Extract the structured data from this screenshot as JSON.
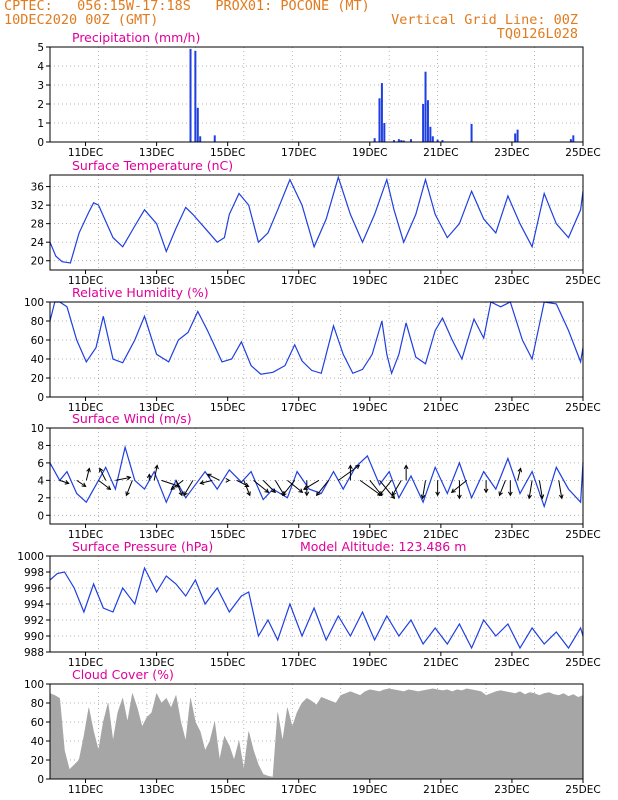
{
  "header": {
    "line1": "CPTEC:   056:15W-17:18S   PROX01: POCONE (MT)",
    "line2": "10DEC2020 00Z (GMT)",
    "grid_note": "Vertical Grid Line: 00Z",
    "code": "TQ0126L028"
  },
  "colors": {
    "header": "#e07b1f",
    "title": "#e0009a",
    "series": "#1f3fe0",
    "cloud": "#a6a6a6",
    "frame": "#000000",
    "grid": "#9a9a9a",
    "arrow": "#000000"
  },
  "x_ticks": [
    "11DEC",
    "13DEC",
    "15DEC",
    "17DEC",
    "19DEC",
    "21DEC",
    "23DEC",
    "25DEC"
  ],
  "chart_data": [
    {
      "id": "precip",
      "type": "bar",
      "title": "Precipitation  (mm/h)",
      "ylim": [
        0,
        5
      ],
      "yticks": [
        0,
        1,
        2,
        3,
        4,
        5
      ],
      "x_days": [
        2.9,
        3.0,
        3.05,
        3.1,
        3.4,
        6.7,
        6.8,
        6.85,
        6.9,
        7.1,
        7.2,
        7.25,
        7.3,
        7.45,
        7.7,
        7.75,
        7.8,
        7.85,
        7.9,
        8.0,
        8.1,
        8.7,
        9.6,
        9.65,
        10.75,
        10.8
      ],
      "values": [
        4.9,
        4.8,
        1.8,
        0.3,
        0.35,
        0.2,
        2.3,
        3.1,
        1.0,
        0.1,
        0.15,
        0.1,
        0.08,
        0.15,
        2.0,
        3.7,
        2.2,
        0.8,
        0.3,
        0.12,
        0.1,
        0.95,
        0.45,
        0.65,
        0.15,
        0.35
      ]
    },
    {
      "id": "temp",
      "type": "line",
      "title": "Surface Temperature  (nC)",
      "ylim": [
        18,
        38.5
      ],
      "yticks": [
        20,
        24,
        28,
        32,
        36
      ],
      "x_days": [
        0,
        0.12,
        0.25,
        0.42,
        0.6,
        0.8,
        0.9,
        1.0,
        1.3,
        1.5,
        1.75,
        1.95,
        2.2,
        2.4,
        2.6,
        2.8,
        2.95,
        3.2,
        3.45,
        3.6,
        3.7,
        3.9,
        4.1,
        4.3,
        4.5,
        4.7,
        4.95,
        5.2,
        5.45,
        5.7,
        5.95,
        6.2,
        6.45,
        6.7,
        6.95,
        7.1,
        7.3,
        7.55,
        7.75,
        7.95,
        8.2,
        8.45,
        8.7,
        8.95,
        9.2,
        9.45,
        9.7,
        9.95,
        10.2,
        10.45,
        10.7,
        10.95,
        11.0
      ],
      "values": [
        24,
        21,
        19.8,
        19.5,
        26,
        30.5,
        32.5,
        32,
        25,
        23,
        27.5,
        31,
        28,
        22,
        27,
        31.5,
        30,
        27,
        24,
        25,
        30,
        34.5,
        32,
        24,
        26,
        31,
        37.5,
        32,
        23,
        29,
        38,
        30,
        24,
        30,
        37.5,
        31,
        24,
        30,
        37.5,
        30,
        25,
        28,
        35,
        29,
        26,
        34,
        28,
        23,
        34.5,
        28,
        25,
        31,
        35
      ]
    },
    {
      "id": "rh",
      "type": "line",
      "title": "Relative Humidity  (%)",
      "ylim": [
        0,
        100
      ],
      "yticks": [
        0,
        20,
        40,
        60,
        80,
        100
      ],
      "x_days": [
        0,
        0.1,
        0.2,
        0.35,
        0.55,
        0.75,
        0.95,
        1.1,
        1.3,
        1.5,
        1.75,
        1.95,
        2.2,
        2.45,
        2.65,
        2.85,
        3.05,
        3.25,
        3.55,
        3.75,
        3.95,
        4.15,
        4.35,
        4.6,
        4.85,
        5.05,
        5.2,
        5.4,
        5.6,
        5.85,
        6.05,
        6.25,
        6.45,
        6.65,
        6.85,
        6.95,
        7.05,
        7.2,
        7.35,
        7.55,
        7.75,
        7.95,
        8.1,
        8.3,
        8.5,
        8.75,
        8.95,
        9.1,
        9.3,
        9.5,
        9.75,
        9.95,
        10.2,
        10.45,
        10.7,
        10.95,
        11.0
      ],
      "values": [
        80,
        100,
        100,
        95,
        60,
        37,
        52,
        85,
        40,
        36,
        60,
        85,
        45,
        37,
        60,
        68,
        90,
        70,
        37,
        40,
        58,
        33,
        24,
        26,
        33,
        55,
        38,
        28,
        25,
        75,
        45,
        25,
        29,
        45,
        80,
        45,
        25,
        45,
        78,
        42,
        35,
        70,
        83,
        60,
        40,
        82,
        62,
        100,
        95,
        100,
        60,
        40,
        100,
        98,
        70,
        37,
        52
      ]
    },
    {
      "id": "wind",
      "type": "line",
      "title": "Surface  Wind  (m/s)",
      "ylim": [
        -1,
        10
      ],
      "yticks": [
        0,
        2,
        4,
        6,
        8,
        10
      ],
      "x_days": [
        0,
        0.2,
        0.35,
        0.55,
        0.75,
        1.0,
        1.15,
        1.35,
        1.55,
        1.75,
        1.95,
        2.15,
        2.4,
        2.6,
        2.8,
        3.0,
        3.2,
        3.45,
        3.7,
        3.95,
        4.15,
        4.4,
        4.6,
        4.9,
        5.1,
        5.35,
        5.6,
        5.85,
        6.05,
        6.3,
        6.55,
        6.8,
        7.0,
        7.2,
        7.45,
        7.7,
        7.95,
        8.2,
        8.45,
        8.7,
        8.95,
        9.2,
        9.45,
        9.7,
        9.95,
        10.2,
        10.45,
        10.7,
        10.95,
        11.0
      ],
      "values": [
        6,
        4,
        5,
        2.5,
        1.5,
        4,
        5.5,
        3,
        7.8,
        4,
        3,
        5,
        1.5,
        4,
        2,
        3.5,
        5,
        3,
        5.2,
        3.8,
        5,
        1.8,
        3,
        2,
        5,
        3,
        2.5,
        5,
        3,
        5.5,
        6.8,
        3.5,
        5,
        2,
        4.5,
        1.5,
        5.5,
        2.5,
        6,
        2,
        5,
        3,
        6.5,
        2.5,
        5,
        1,
        5.5,
        3,
        1.5,
        6
      ]
    },
    {
      "id": "pressure",
      "type": "line",
      "title": "Surface Pressure  (hPa)",
      "model_altitude": "Model Altitude:  123.486  m",
      "ylim": [
        988,
        1000
      ],
      "yticks": [
        988,
        990,
        992,
        994,
        996,
        998,
        1000
      ],
      "x_days": [
        0,
        0.15,
        0.3,
        0.5,
        0.7,
        0.9,
        1.1,
        1.3,
        1.5,
        1.75,
        1.95,
        2.2,
        2.4,
        2.6,
        2.8,
        3.0,
        3.2,
        3.45,
        3.7,
        3.95,
        4.1,
        4.3,
        4.5,
        4.7,
        4.95,
        5.2,
        5.45,
        5.7,
        5.95,
        6.2,
        6.45,
        6.7,
        6.95,
        7.2,
        7.45,
        7.7,
        7.95,
        8.2,
        8.45,
        8.7,
        8.95,
        9.2,
        9.45,
        9.7,
        9.95,
        10.2,
        10.45,
        10.7,
        10.95,
        11.0
      ],
      "values": [
        997,
        997.8,
        998,
        996,
        993,
        996.5,
        993.5,
        993,
        996,
        994,
        998.5,
        995.5,
        997.5,
        996.5,
        995,
        997,
        994,
        996,
        993,
        995,
        995.5,
        990,
        992,
        989.5,
        994,
        990,
        993.5,
        989.5,
        992.5,
        990,
        993,
        989.5,
        992.5,
        990,
        992,
        989,
        991,
        989,
        991.5,
        988.5,
        992,
        990,
        991.5,
        988.5,
        991,
        989,
        990.5,
        988.5,
        991,
        990
      ]
    },
    {
      "id": "cloud",
      "type": "area",
      "title": "Cloud Cover  (%)",
      "ylim": [
        0,
        100
      ],
      "yticks": [
        0,
        20,
        40,
        60,
        80,
        100
      ],
      "x_days": [
        0,
        0.1,
        0.2,
        0.3,
        0.4,
        0.5,
        0.6,
        0.7,
        0.8,
        0.9,
        1.0,
        1.1,
        1.2,
        1.3,
        1.4,
        1.5,
        1.6,
        1.7,
        1.8,
        1.9,
        2.0,
        2.1,
        2.2,
        2.3,
        2.4,
        2.5,
        2.6,
        2.7,
        2.8,
        2.9,
        3.0,
        3.1,
        3.2,
        3.3,
        3.4,
        3.5,
        3.6,
        3.7,
        3.8,
        3.9,
        4.0,
        4.1,
        4.2,
        4.3,
        4.4,
        4.5,
        4.6,
        4.7,
        4.8,
        4.9,
        5.0,
        5.1,
        5.2,
        5.3,
        5.4,
        5.5,
        5.6,
        5.7,
        5.8,
        5.9,
        6.0,
        6.1,
        6.2,
        6.3,
        6.4,
        6.5,
        6.6,
        6.7,
        6.8,
        6.9,
        7.0,
        7.1,
        7.2,
        7.3,
        7.4,
        7.5,
        7.6,
        7.7,
        7.8,
        7.9,
        8.0,
        8.1,
        8.2,
        8.3,
        8.4,
        8.5,
        8.6,
        8.7,
        8.8,
        8.9,
        9.0,
        9.1,
        9.2,
        9.3,
        9.4,
        9.5,
        9.6,
        9.7,
        9.8,
        9.9,
        10.0,
        10.1,
        10.2,
        10.3,
        10.4,
        10.5,
        10.6,
        10.7,
        10.8,
        10.9,
        11.0
      ],
      "values": [
        90,
        88,
        85,
        30,
        10,
        15,
        20,
        45,
        75,
        50,
        30,
        60,
        80,
        40,
        70,
        85,
        60,
        90,
        75,
        55,
        65,
        70,
        90,
        80,
        85,
        75,
        88,
        60,
        40,
        85,
        60,
        50,
        30,
        40,
        60,
        20,
        45,
        35,
        20,
        40,
        10,
        50,
        30,
        15,
        5,
        3,
        2,
        70,
        40,
        75,
        55,
        70,
        80,
        85,
        82,
        78,
        86,
        84,
        82,
        80,
        88,
        90,
        92,
        90,
        88,
        92,
        94,
        93,
        92,
        94,
        95,
        94,
        93,
        92,
        94,
        93,
        92,
        93,
        94,
        95,
        94,
        93,
        94,
        92,
        94,
        93,
        95,
        94,
        93,
        92,
        88,
        90,
        92,
        93,
        92,
        91,
        90,
        92,
        89,
        91,
        90,
        88,
        90,
        91,
        89,
        88,
        90,
        87,
        89,
        86,
        88
      ]
    }
  ],
  "wind_arrows": {
    "label": "wind direction arrows (m/s)",
    "x_days": [
      0.2,
      0.55,
      0.75,
      1.0,
      1.15,
      1.35,
      1.7,
      2.05,
      2.15,
      2.3,
      2.6,
      2.75,
      2.95,
      3.35,
      3.5,
      3.7,
      3.85,
      4.0,
      4.2,
      4.4,
      4.65,
      4.9,
      5.05,
      5.3,
      5.55,
      5.75,
      5.95,
      6.2,
      6.4,
      6.6,
      6.8,
      7.05,
      7.25,
      7.35,
      7.75,
      8.0,
      8.45,
      8.6,
      9.0,
      9.4,
      9.5,
      9.65,
      9.95,
      10.1,
      10.5
    ],
    "u": [
      1.5,
      1.5,
      0.5,
      2.0,
      -1.0,
      2.5,
      -1.0,
      0.0,
      0.5,
      3.0,
      1.0,
      -2.0,
      -1.5,
      -2.0,
      -2.0,
      0.0,
      2.0,
      1.0,
      2.5,
      2.0,
      1.5,
      2.5,
      -2.0,
      0.0,
      -2.5,
      -2.0,
      3.5,
      0.0,
      3.5,
      2.0,
      2.5,
      -2.0,
      -1.5,
      0.0,
      -0.5,
      0.0,
      0.0,
      -2.5,
      0.0,
      -1.0,
      0.0,
      0.5,
      -0.5,
      0.5,
      0.5
    ],
    "v": [
      -0.5,
      -1.0,
      2.0,
      -1.5,
      2.0,
      0.5,
      -2.5,
      1.0,
      2.5,
      -1.0,
      -2.5,
      -1.5,
      -2.5,
      -0.5,
      1.0,
      0.0,
      -1.0,
      -2.5,
      -2.0,
      -2.0,
      -2.5,
      -2.0,
      -2.5,
      -2.5,
      -1.5,
      -2.5,
      2.5,
      2.5,
      -2.5,
      -2.5,
      -3.0,
      -2.5,
      -2.5,
      2.5,
      -3.0,
      -2.5,
      -3.0,
      -2.0,
      -2.0,
      -2.5,
      -2.5,
      2.0,
      -3.0,
      -3.0,
      -3.0
    ]
  }
}
